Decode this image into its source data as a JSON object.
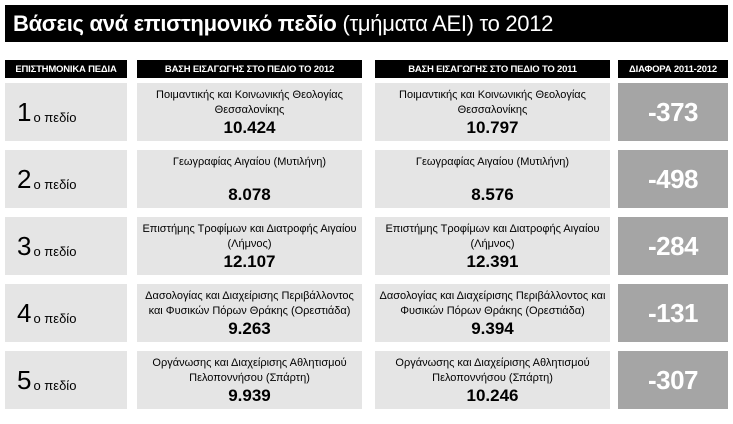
{
  "title": {
    "bold": "Βάσεις ανά επιστημονικό πεδίο",
    "normal": "(τμήματα ΑΕΙ) το 2012"
  },
  "headers": {
    "field": "ΕΠΙΣΤΗΜΟΝΙΚΑ ΠΕΔΙΑ",
    "base_2012": "ΒΑΣΗ ΕΙΣΑΓΩΓΗΣ ΣΤΟ ΠΕΔΙΟ ΤΟ 2012",
    "base_2011": "ΒΑΣΗ ΕΙΣΑΓΩΓΗΣ ΣΤΟ ΠΕΔΙΟ ΤΟ 2011",
    "diff": "ΔΙΑΦΟΡΑ 2011-2012"
  },
  "rows": [
    {
      "num": "1",
      "suffix": "ο πεδίο",
      "dept_2012": "Ποιμαντικής και Κοινωνικής Θεολογίας Θεσσαλονίκης",
      "score_2012": "10.424",
      "dept_2011": "Ποιμαντικής και Κοινωνικής Θεολογίας Θεσσαλονίκης",
      "score_2011": "10.797",
      "diff": "-373"
    },
    {
      "num": "2",
      "suffix": "ο πεδίο",
      "dept_2012": "Γεωγραφίας Αιγαίου (Μυτιλήνη)",
      "score_2012": "8.078",
      "dept_2011": "Γεωγραφίας Αιγαίου (Μυτιλήνη)",
      "score_2011": "8.576",
      "diff": "-498"
    },
    {
      "num": "3",
      "suffix": "ο πεδίο",
      "dept_2012": "Επιστήμης Τροφίμων και Διατροφής Αιγαίου (Λήμνος)",
      "score_2012": "12.107",
      "dept_2011": "Επιστήμης Τροφίμων και Διατροφής Αιγαίου (Λήμνος)",
      "score_2011": "12.391",
      "diff": "-284"
    },
    {
      "num": "4",
      "suffix": "ο πεδίο",
      "dept_2012": "Δασολογίας και Διαχείρισης Περιβάλλοντος και Φυσικών Πόρων Θράκης (Ορεστιάδα)",
      "score_2012": "9.263",
      "dept_2011": "Δασολογίας και Διαχείρισης Περιβάλλοντος και Φυσικών Πόρων Θράκης (Ορεστιάδα)",
      "score_2011": "9.394",
      "diff": "-131"
    },
    {
      "num": "5",
      "suffix": "ο πεδίο",
      "dept_2012": "Οργάνωσης και Διαχείρισης Αθλητισμού Πελοποννήσου (Σπάρτη)",
      "score_2012": "9.939",
      "dept_2011": "Οργάνωσης και Διαχείρισης Αθλητισμού Πελοποννήσου (Σπάρτη)",
      "score_2011": "10.246",
      "diff": "-307"
    }
  ]
}
